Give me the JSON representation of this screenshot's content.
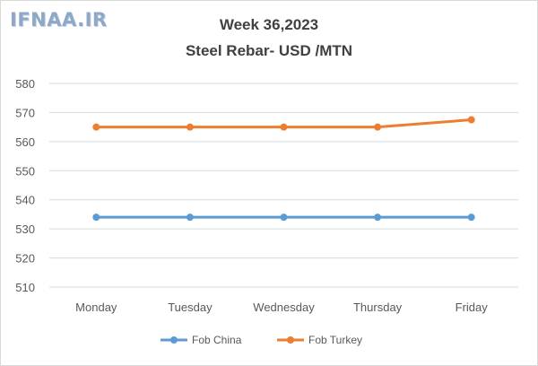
{
  "logo_text": "IFNAA.IR",
  "chart_data": {
    "type": "line",
    "title": "Week 36,2023",
    "subtitle": "Steel Rebar- USD /MTN",
    "categories": [
      "Monday",
      "Tuesday",
      "Wednesday",
      "Thursday",
      "Friday"
    ],
    "series": [
      {
        "name": "Fob China",
        "color": "#5b9bd5",
        "values": [
          534,
          534,
          534,
          534,
          534
        ]
      },
      {
        "name": "Fob Turkey",
        "color": "#ed7d31",
        "values": [
          565,
          565,
          565,
          565,
          567.5
        ]
      }
    ],
    "ylim": [
      510,
      580
    ],
    "yticks": [
      510,
      520,
      530,
      540,
      550,
      560,
      570,
      580
    ],
    "grid": true,
    "legend": "bottom"
  }
}
